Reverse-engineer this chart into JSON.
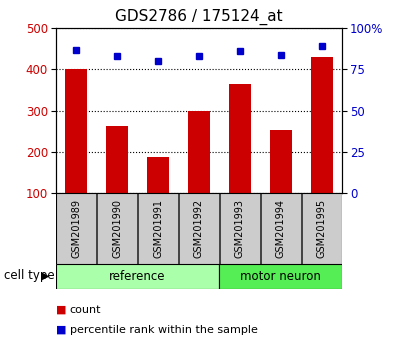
{
  "title": "GDS2786 / 175124_at",
  "categories": [
    "GSM201989",
    "GSM201990",
    "GSM201991",
    "GSM201992",
    "GSM201993",
    "GSM201994",
    "GSM201995"
  ],
  "bar_values": [
    400,
    262,
    188,
    300,
    365,
    253,
    430
  ],
  "percentile_values": [
    87,
    83,
    80,
    83,
    86,
    84,
    89
  ],
  "left_ylim": [
    100,
    500
  ],
  "right_ylim": [
    0,
    100
  ],
  "left_yticks": [
    100,
    200,
    300,
    400,
    500
  ],
  "right_yticks": [
    0,
    25,
    50,
    75,
    100
  ],
  "right_yticklabels": [
    "0",
    "25",
    "50",
    "75",
    "100%"
  ],
  "bar_color": "#cc0000",
  "marker_color": "#0000cc",
  "bar_bottom": 100,
  "groups": [
    {
      "label": "reference",
      "start": 0,
      "end": 4,
      "color": "#aaffaa"
    },
    {
      "label": "motor neuron",
      "start": 4,
      "end": 7,
      "color": "#55ee55"
    }
  ],
  "cell_type_label": "cell type",
  "legend_count_label": "count",
  "legend_pct_label": "percentile rank within the sample",
  "tick_bg_color": "#cccccc",
  "title_fontsize": 11,
  "tick_fontsize": 8.5,
  "label_fontsize": 8,
  "cat_fontsize": 7,
  "grp_fontsize": 8.5
}
